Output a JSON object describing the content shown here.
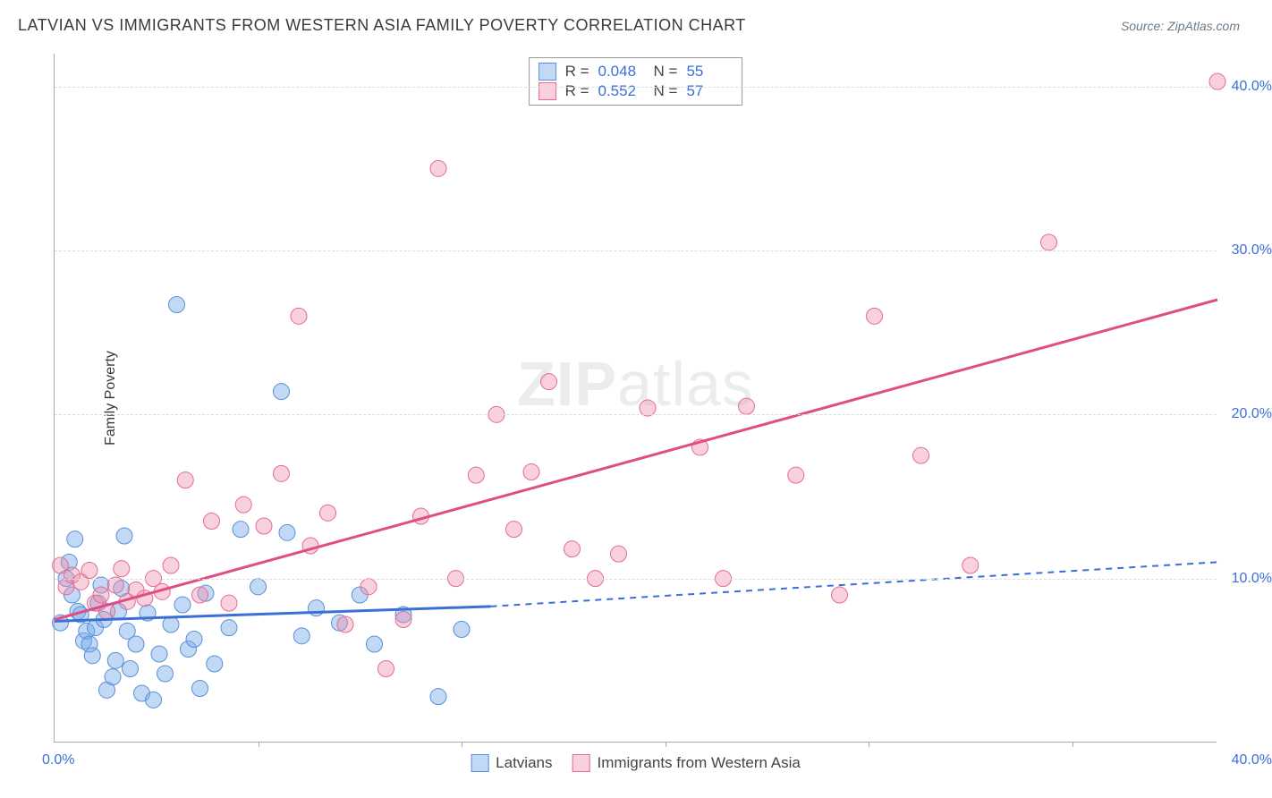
{
  "title": "LATVIAN VS IMMIGRANTS FROM WESTERN ASIA FAMILY POVERTY CORRELATION CHART",
  "source_prefix": "Source: ",
  "source_name": "ZipAtlas.com",
  "ylabel": "Family Poverty",
  "watermark_a": "ZIP",
  "watermark_b": "atlas",
  "axes": {
    "xmin": 0,
    "xmax": 40,
    "ymin": 0,
    "ymax": 42,
    "ytick_values": [
      10,
      20,
      30,
      40
    ],
    "ytick_labels": [
      "10.0%",
      "20.0%",
      "30.0%",
      "40.0%"
    ],
    "xtick_values": [
      0,
      7,
      14,
      21,
      28,
      35
    ],
    "x_label_min": "0.0%",
    "x_label_max": "40.0%",
    "grid_color": "#dcdcdc"
  },
  "series": {
    "latvians": {
      "label": "Latvians",
      "fill": "rgba(120,170,235,0.45)",
      "stroke": "#5a8fd6",
      "r_value": "0.048",
      "n_value": "55",
      "trend_solid": {
        "x1": 0,
        "y1": 7.4,
        "x2": 15,
        "y2": 8.3
      },
      "trend_dash": {
        "x1": 15,
        "y1": 8.3,
        "x2": 40,
        "y2": 11.0
      },
      "points": [
        [
          0.2,
          7.3
        ],
        [
          0.4,
          10.0
        ],
        [
          0.5,
          11.0
        ],
        [
          0.6,
          9.0
        ],
        [
          0.7,
          12.4
        ],
        [
          0.8,
          8.0
        ],
        [
          0.9,
          7.8
        ],
        [
          1.0,
          6.2
        ],
        [
          1.1,
          6.8
        ],
        [
          1.2,
          6.0
        ],
        [
          1.3,
          5.3
        ],
        [
          1.4,
          7.0
        ],
        [
          1.5,
          8.5
        ],
        [
          1.6,
          9.6
        ],
        [
          1.7,
          7.5
        ],
        [
          1.8,
          3.2
        ],
        [
          2.0,
          4.0
        ],
        [
          2.1,
          5.0
        ],
        [
          2.2,
          8.0
        ],
        [
          2.3,
          9.4
        ],
        [
          2.4,
          12.6
        ],
        [
          2.5,
          6.8
        ],
        [
          2.6,
          4.5
        ],
        [
          2.8,
          6.0
        ],
        [
          3.0,
          3.0
        ],
        [
          3.2,
          7.9
        ],
        [
          3.4,
          2.6
        ],
        [
          3.6,
          5.4
        ],
        [
          3.8,
          4.2
        ],
        [
          4.0,
          7.2
        ],
        [
          4.2,
          26.7
        ],
        [
          4.4,
          8.4
        ],
        [
          4.6,
          5.7
        ],
        [
          4.8,
          6.3
        ],
        [
          5.0,
          3.3
        ],
        [
          5.2,
          9.1
        ],
        [
          5.5,
          4.8
        ],
        [
          6.0,
          7.0
        ],
        [
          6.4,
          13.0
        ],
        [
          7.0,
          9.5
        ],
        [
          7.8,
          21.4
        ],
        [
          8.0,
          12.8
        ],
        [
          8.5,
          6.5
        ],
        [
          9.0,
          8.2
        ],
        [
          9.8,
          7.3
        ],
        [
          10.5,
          9.0
        ],
        [
          11.0,
          6.0
        ],
        [
          12.0,
          7.8
        ],
        [
          13.2,
          2.8
        ],
        [
          14.0,
          6.9
        ]
      ]
    },
    "western_asia": {
      "label": "Immigrants from Western Asia",
      "fill": "rgba(240,140,170,0.40)",
      "stroke": "#e36b94",
      "r_value": "0.552",
      "n_value": "57",
      "trend_solid": {
        "x1": 0,
        "y1": 7.5,
        "x2": 40,
        "y2": 27.0
      },
      "trend_dash": null,
      "points": [
        [
          0.2,
          10.8
        ],
        [
          0.4,
          9.5
        ],
        [
          0.6,
          10.2
        ],
        [
          0.9,
          9.8
        ],
        [
          1.2,
          10.5
        ],
        [
          1.4,
          8.5
        ],
        [
          1.6,
          9.0
        ],
        [
          1.8,
          8.0
        ],
        [
          2.1,
          9.6
        ],
        [
          2.3,
          10.6
        ],
        [
          2.5,
          8.6
        ],
        [
          2.8,
          9.3
        ],
        [
          3.1,
          8.8
        ],
        [
          3.4,
          10.0
        ],
        [
          3.7,
          9.2
        ],
        [
          4.0,
          10.8
        ],
        [
          4.5,
          16.0
        ],
        [
          5.0,
          9.0
        ],
        [
          5.4,
          13.5
        ],
        [
          6.0,
          8.5
        ],
        [
          6.5,
          14.5
        ],
        [
          7.2,
          13.2
        ],
        [
          7.8,
          16.4
        ],
        [
          8.4,
          26.0
        ],
        [
          8.8,
          12.0
        ],
        [
          9.4,
          14.0
        ],
        [
          10.0,
          7.2
        ],
        [
          10.8,
          9.5
        ],
        [
          11.4,
          4.5
        ],
        [
          12.0,
          7.5
        ],
        [
          12.6,
          13.8
        ],
        [
          13.2,
          35.0
        ],
        [
          13.8,
          10.0
        ],
        [
          14.5,
          16.3
        ],
        [
          15.2,
          20.0
        ],
        [
          15.8,
          13.0
        ],
        [
          16.4,
          16.5
        ],
        [
          17.0,
          22.0
        ],
        [
          17.8,
          11.8
        ],
        [
          18.6,
          10.0
        ],
        [
          19.4,
          11.5
        ],
        [
          20.4,
          20.4
        ],
        [
          22.2,
          18.0
        ],
        [
          23.0,
          10.0
        ],
        [
          23.8,
          20.5
        ],
        [
          25.5,
          16.3
        ],
        [
          27.0,
          9.0
        ],
        [
          28.2,
          26.0
        ],
        [
          29.8,
          17.5
        ],
        [
          31.5,
          10.8
        ],
        [
          34.2,
          30.5
        ],
        [
          40.0,
          40.3
        ]
      ]
    }
  },
  "legend_labels": {
    "R": "R =",
    "N": "N ="
  },
  "marker_radius": 9
}
